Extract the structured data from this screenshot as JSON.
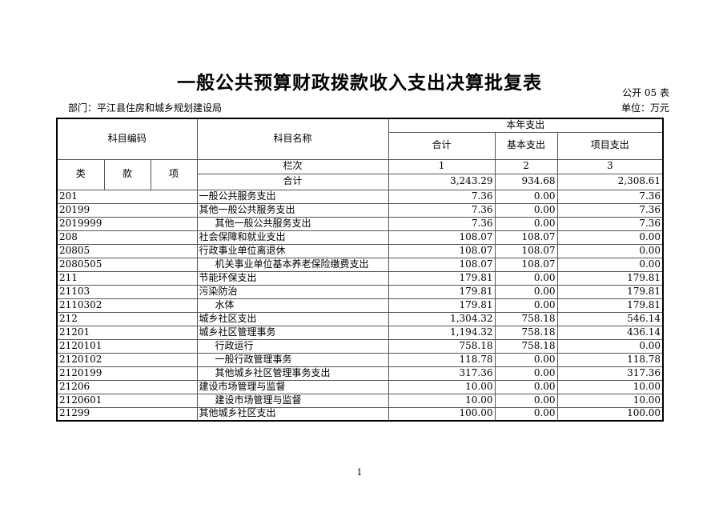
{
  "page": {
    "title": "一般公共预算财政拨款收入支出决算批复表",
    "table_no": "公开 05 表",
    "department_label": "部门：平江县住房和城乡规划建设局",
    "unit_label": "单位：万元",
    "page_number": "1"
  },
  "table": {
    "header": {
      "subject_code": "科目编码",
      "subject_name": "科目名称",
      "current_year_expenditure": "本年支出",
      "total": "合计",
      "basic_expenditure": "基本支出",
      "project_expenditure": "项目支出",
      "class": "类",
      "section": "款",
      "item": "项",
      "column_index_label": "栏次",
      "col1": "1",
      "col2": "2",
      "col3": "3"
    },
    "summary_row": {
      "label": "合计",
      "total": "3,243.29",
      "basic": "934.68",
      "project": "2,308.61"
    },
    "rows": [
      {
        "code": "201",
        "name": "一般公共服务支出",
        "indent": false,
        "total": "7.36",
        "basic": "0.00",
        "project": "7.36"
      },
      {
        "code": "20199",
        "name": "其他一般公共服务支出",
        "indent": false,
        "total": "7.36",
        "basic": "0.00",
        "project": "7.36"
      },
      {
        "code": "2019999",
        "name": "其他一般公共服务支出",
        "indent": true,
        "total": "7.36",
        "basic": "0.00",
        "project": "7.36"
      },
      {
        "code": "208",
        "name": "社会保障和就业支出",
        "indent": false,
        "total": "108.07",
        "basic": "108.07",
        "project": "0.00"
      },
      {
        "code": "20805",
        "name": "行政事业单位离退休",
        "indent": false,
        "total": "108.07",
        "basic": "108.07",
        "project": "0.00"
      },
      {
        "code": "2080505",
        "name": "机关事业单位基本养老保险缴费支出",
        "indent": true,
        "total": "108.07",
        "basic": "108.07",
        "project": "0.00"
      },
      {
        "code": "211",
        "name": "节能环保支出",
        "indent": false,
        "total": "179.81",
        "basic": "0.00",
        "project": "179.81"
      },
      {
        "code": "21103",
        "name": "污染防治",
        "indent": false,
        "total": "179.81",
        "basic": "0.00",
        "project": "179.81"
      },
      {
        "code": "2110302",
        "name": "水体",
        "indent": true,
        "total": "179.81",
        "basic": "0.00",
        "project": "179.81"
      },
      {
        "code": "212",
        "name": "城乡社区支出",
        "indent": false,
        "total": "1,304.32",
        "basic": "758.18",
        "project": "546.14"
      },
      {
        "code": "21201",
        "name": "城乡社区管理事务",
        "indent": false,
        "total": "1,194.32",
        "basic": "758.18",
        "project": "436.14"
      },
      {
        "code": "2120101",
        "name": "行政运行",
        "indent": true,
        "total": "758.18",
        "basic": "758.18",
        "project": "0.00"
      },
      {
        "code": "2120102",
        "name": "一般行政管理事务",
        "indent": true,
        "total": "118.78",
        "basic": "0.00",
        "project": "118.78"
      },
      {
        "code": "2120199",
        "name": "其他城乡社区管理事务支出",
        "indent": true,
        "total": "317.36",
        "basic": "0.00",
        "project": "317.36"
      },
      {
        "code": "21206",
        "name": "建设市场管理与监督",
        "indent": false,
        "total": "10.00",
        "basic": "0.00",
        "project": "10.00"
      },
      {
        "code": "2120601",
        "name": "建设市场管理与监督",
        "indent": true,
        "total": "10.00",
        "basic": "0.00",
        "project": "10.00"
      },
      {
        "code": "21299",
        "name": "其他城乡社区支出",
        "indent": false,
        "total": "100.00",
        "basic": "0.00",
        "project": "100.00"
      }
    ]
  }
}
